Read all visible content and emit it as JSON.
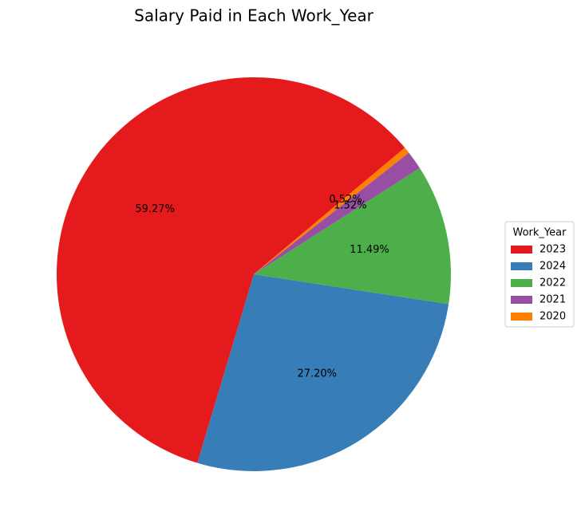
{
  "chart_data": {
    "type": "pie",
    "title": "Salary Paid in Each Work_Year",
    "legend_title": "Work_Year",
    "legend": "right",
    "categories": [
      "2023",
      "2024",
      "2022",
      "2021",
      "2020"
    ],
    "values": [
      59.27,
      27.2,
      11.49,
      1.52,
      0.52
    ],
    "value_labels": [
      "59.27%",
      "27.20%",
      "11.49%",
      "1.52%",
      "0.52%"
    ],
    "colors": [
      "#e41a1c",
      "#377eb8",
      "#4daf4a",
      "#984ea3",
      "#ff7f00"
    ],
    "start_angle": 40
  }
}
